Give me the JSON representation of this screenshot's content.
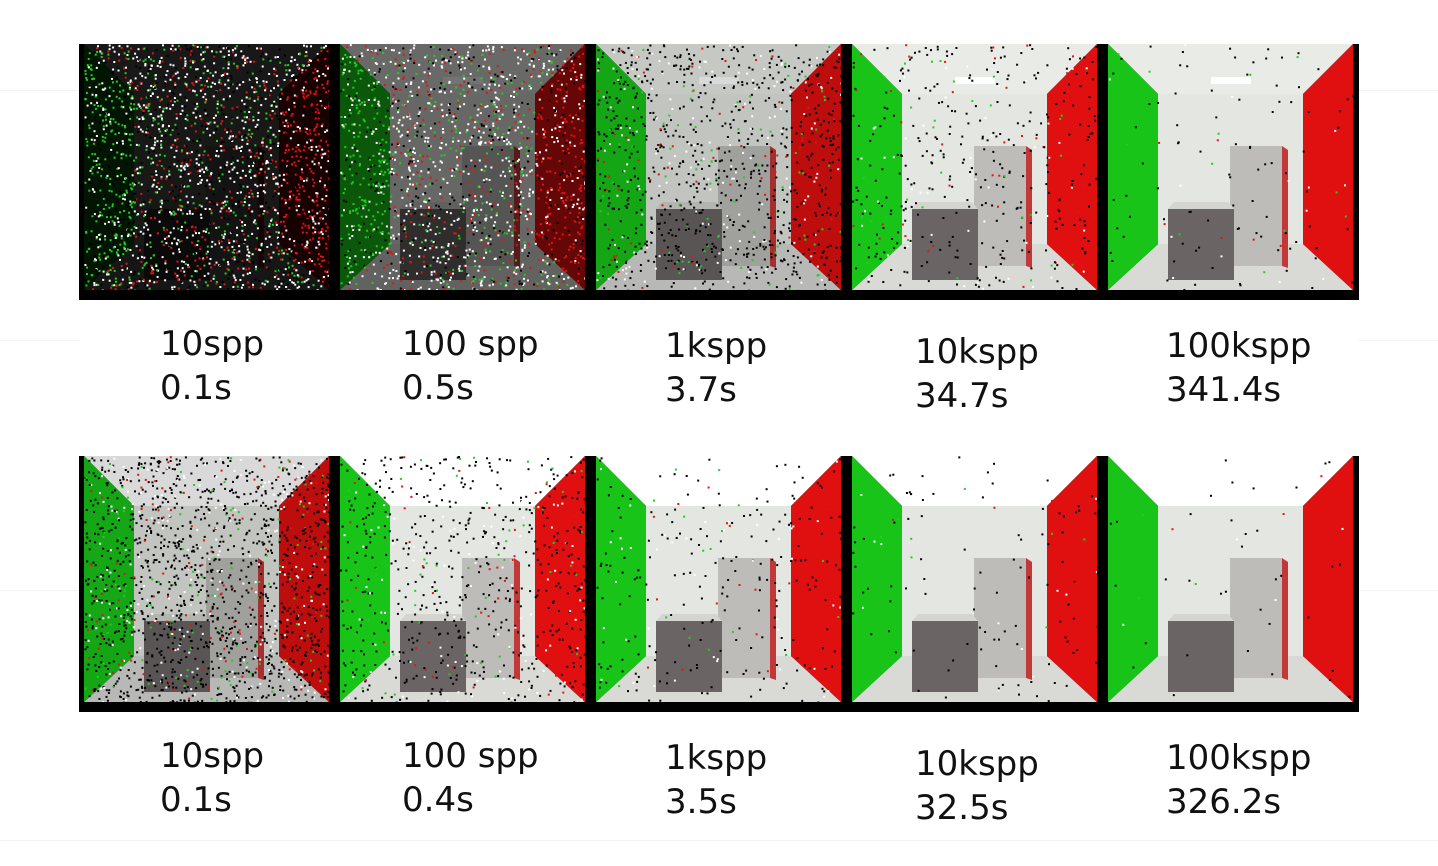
{
  "rows": [
    {
      "cells": [
        {
          "label": "10spp",
          "time": "0.1s",
          "noise": 0.97,
          "ceiling_light": true,
          "lit": 0.1
        },
        {
          "label": "100 spp",
          "time": "0.5s",
          "noise": 0.75,
          "ceiling_light": true,
          "lit": 0.45
        },
        {
          "label": "1kspp",
          "time": "3.7s",
          "noise": 0.45,
          "ceiling_light": true,
          "lit": 0.85
        },
        {
          "label": "10kspp",
          "time": "34.7s",
          "noise": 0.18,
          "ceiling_light": true,
          "lit": 1.0
        },
        {
          "label": "100kspp",
          "time": "341.4s",
          "noise": 0.05,
          "ceiling_light": true,
          "lit": 1.0
        }
      ]
    },
    {
      "cells": [
        {
          "label": "10spp",
          "time": "0.1s",
          "noise": 0.7,
          "ceiling_light": false,
          "lit": 0.85
        },
        {
          "label": "100 spp",
          "time": "0.4s",
          "noise": 0.3,
          "ceiling_light": false,
          "lit": 1.0
        },
        {
          "label": "1kspp",
          "time": "3.5s",
          "noise": 0.12,
          "ceiling_light": false,
          "lit": 1.0
        },
        {
          "label": "10kspp",
          "time": "32.5s",
          "noise": 0.05,
          "ceiling_light": false,
          "lit": 1.0
        },
        {
          "label": "100kspp",
          "time": "326.2s",
          "noise": 0.02,
          "ceiling_light": false,
          "lit": 1.0
        }
      ]
    }
  ],
  "colors": {
    "left_wall": "#19c419",
    "right_wall": "#e01010",
    "ceiling": "#ffffff",
    "back_wall": "#e4e7e1",
    "floor": "#d9d9d6",
    "box": "#6a6464",
    "frame": "#000000",
    "caption": "#111111"
  }
}
